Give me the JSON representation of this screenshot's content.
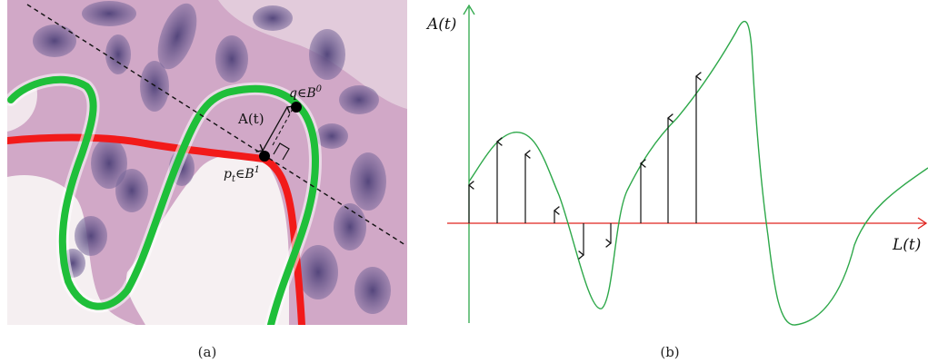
{
  "panel_a": {
    "caption": "(a)",
    "label_A": "A(t)",
    "label_q": "q∈B",
    "label_q_sup": "0",
    "label_p": "p",
    "label_p_sub": "t",
    "label_p_rest": "∈B",
    "label_p_sup": "1",
    "colors": {
      "green_contour": "#1fbf3a",
      "red_contour": "#f21a1a",
      "tissue_bg": "#cfa6c6",
      "lumen": "#f4eef0",
      "nuclei": "#6a5a8e"
    }
  },
  "panel_b": {
    "caption": "(b)",
    "y_axis_label": "A(t)",
    "x_axis_label": "L(t)",
    "colors": {
      "curve": "#2ea84a",
      "y_axis": "#2ea84a",
      "x_axis": "#e0241f",
      "arrows": "#111111"
    }
  }
}
